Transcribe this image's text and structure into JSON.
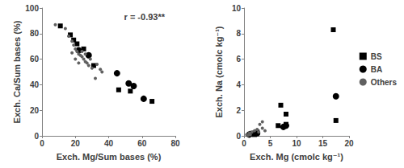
{
  "chart_data": [
    {
      "type": "scatter",
      "x_label": "Exch. Mg/Sum bases (%)",
      "y_label": "Exch. Ca/Sum bases (%)",
      "annotation": "r = -0.93**",
      "xlim": [
        0,
        80
      ],
      "xticks": [
        0,
        20,
        40,
        60,
        80
      ],
      "ylim": [
        0,
        100
      ],
      "yticks": [
        0,
        20,
        40,
        60,
        80,
        100
      ],
      "grid": false,
      "series": [
        {
          "name": "BS",
          "color": "#000000",
          "marker": "square",
          "values": [
            [
              11,
              86
            ],
            [
              17,
              79
            ],
            [
              19,
              75
            ],
            [
              21,
              72
            ],
            [
              25,
              68
            ],
            [
              31,
              55
            ],
            [
              46,
              36
            ],
            [
              53,
              35
            ],
            [
              66,
              27
            ]
          ]
        },
        {
          "name": "BA",
          "color": "#000000",
          "marker": "circle",
          "values": [
            [
              22,
              67
            ],
            [
              28,
              63
            ],
            [
              45,
              49
            ],
            [
              52,
              41
            ],
            [
              55,
              39
            ],
            [
              61,
              29
            ]
          ]
        },
        {
          "name": "Others",
          "color": "#606060",
          "marker": "circle",
          "values": [
            [
              8,
              87
            ],
            [
              14,
              84
            ],
            [
              16,
              78
            ],
            [
              18,
              74
            ],
            [
              19,
              71
            ],
            [
              20,
              68
            ],
            [
              21,
              66
            ],
            [
              22,
              64
            ],
            [
              23,
              63
            ],
            [
              24,
              62
            ],
            [
              25,
              60
            ],
            [
              26,
              58
            ],
            [
              27,
              57
            ],
            [
              28,
              55
            ],
            [
              30,
              53
            ],
            [
              32,
              45
            ],
            [
              35,
              52
            ],
            [
              20,
              60
            ],
            [
              18,
              65
            ],
            [
              24,
              66
            ],
            [
              26,
              64
            ],
            [
              29,
              60
            ],
            [
              33,
              56
            ],
            [
              36,
              50
            ],
            [
              22,
              57
            ]
          ]
        }
      ]
    },
    {
      "type": "scatter",
      "x_label": "Exch. Mg (cmolc kg⁻¹)",
      "y_label": "Exch. Na (cmolc kg⁻¹)",
      "xlim": [
        0,
        20
      ],
      "xticks": [
        0,
        5,
        10,
        15,
        20
      ],
      "ylim": [
        0,
        10
      ],
      "yticks": [
        0,
        2,
        4,
        6,
        8,
        10
      ],
      "grid": false,
      "legend": "right",
      "series": [
        {
          "name": "BS",
          "color": "#000000",
          "marker": "square",
          "values": [
            [
              17,
              8.3
            ],
            [
              17.5,
              1.2
            ],
            [
              7,
              2.4
            ],
            [
              8,
              1.7
            ],
            [
              8,
              0.9
            ],
            [
              6.5,
              0.8
            ],
            [
              1.5,
              0.2
            ],
            [
              2,
              0.1
            ],
            [
              2.5,
              0.3
            ]
          ]
        },
        {
          "name": "BA",
          "color": "#000000",
          "marker": "circle",
          "values": [
            [
              17.5,
              3.1
            ],
            [
              8,
              0.8
            ],
            [
              7.5,
              0.7
            ],
            [
              2,
              0.2
            ],
            [
              1,
              0.1
            ],
            [
              2.5,
              0.2
            ]
          ]
        },
        {
          "name": "Others",
          "color": "#606060",
          "marker": "circle",
          "values": [
            [
              0.5,
              0.1
            ],
            [
              1,
              0.2
            ],
            [
              1.5,
              0.3
            ],
            [
              2,
              0.4
            ],
            [
              2.5,
              0.5
            ],
            [
              3,
              0.9
            ],
            [
              3.5,
              0.6
            ],
            [
              1.2,
              0.1
            ],
            [
              2.8,
              0.3
            ],
            [
              3.5,
              1.1
            ],
            [
              4,
              0.4
            ],
            [
              0.8,
              0.05
            ]
          ]
        }
      ]
    }
  ]
}
